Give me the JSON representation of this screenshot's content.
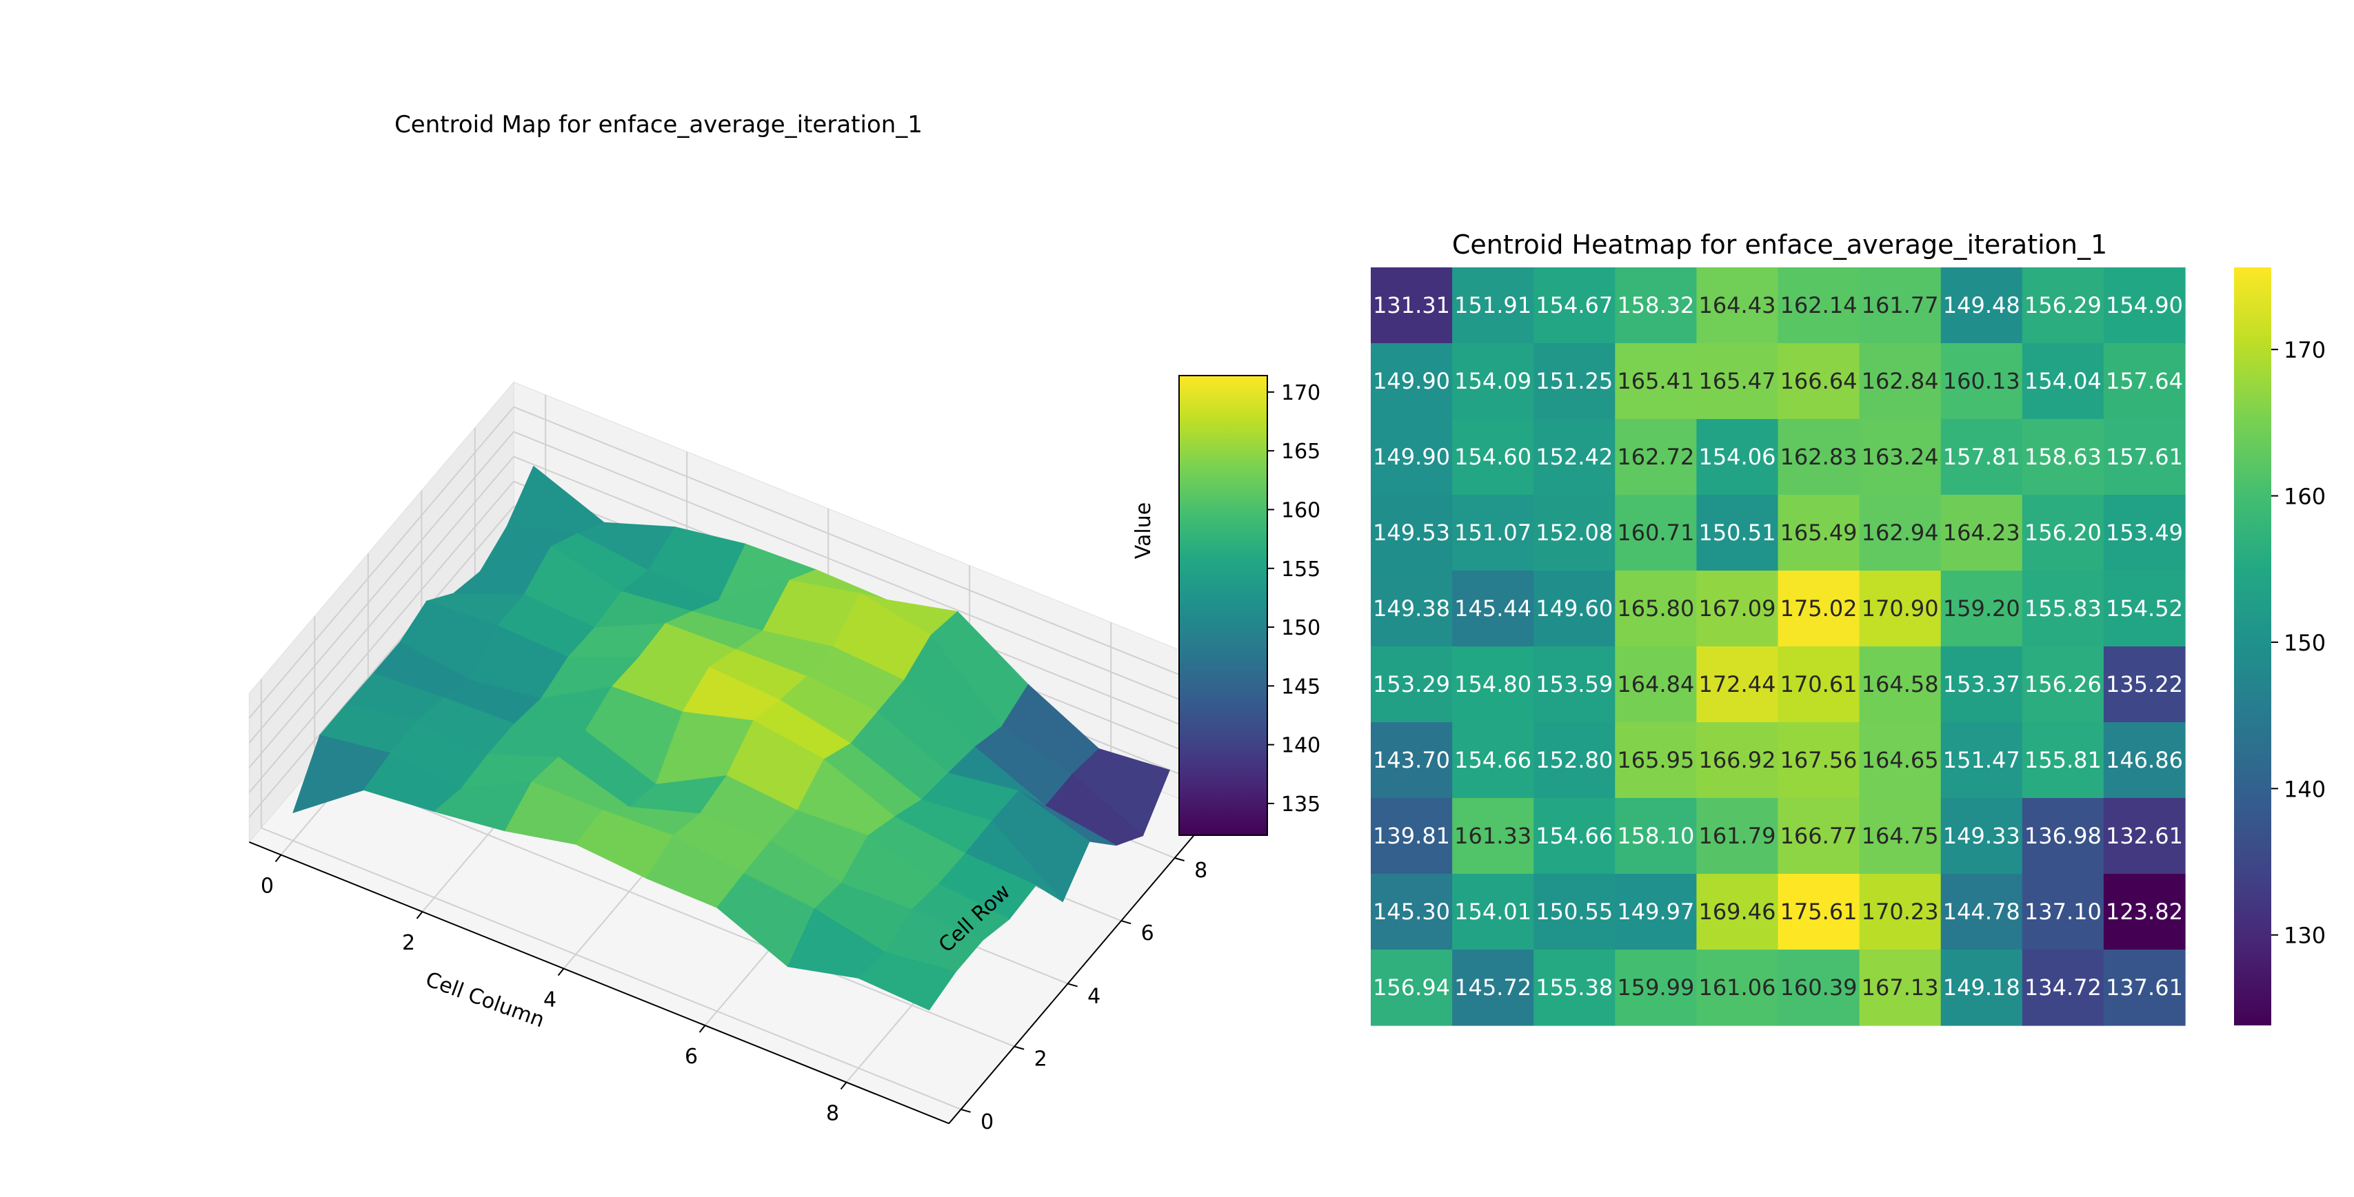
{
  "chart_data": [
    {
      "type": "surface",
      "title": "Centroid Map for enface_average_iteration_1",
      "xlabel": "Cell Column",
      "ylabel": "Cell Row",
      "zlabel": "Value",
      "x_ticks": [
        "0",
        "2",
        "4",
        "6",
        "8"
      ],
      "y_ticks": [
        "0",
        "2",
        "4",
        "6",
        "8"
      ],
      "z_ticks": [
        "130",
        "140",
        "150",
        "160",
        "170"
      ],
      "zlim": [
        123.82,
        175.61
      ],
      "colormap": "viridis",
      "colorbar": {
        "label": "Value",
        "ticks": [
          "135",
          "140",
          "145",
          "150",
          "155",
          "160",
          "165",
          "170"
        ],
        "range": [
          132.3,
          171.4
        ]
      },
      "grid": true,
      "source": "heatmap_values"
    },
    {
      "type": "heatmap",
      "title": "Centroid Heatmap for enface_average_iteration_1",
      "colormap": "viridis",
      "value_range": [
        123.82,
        175.61
      ],
      "colorbar": {
        "ticks": [
          "130",
          "140",
          "150",
          "160",
          "170"
        ]
      },
      "values": [
        [
          131.31,
          151.91,
          154.67,
          158.32,
          164.43,
          162.14,
          161.77,
          149.48,
          156.29,
          154.9
        ],
        [
          149.9,
          154.09,
          151.25,
          165.41,
          165.47,
          166.64,
          162.84,
          160.13,
          154.04,
          157.64
        ],
        [
          149.9,
          154.6,
          152.42,
          162.72,
          154.06,
          162.83,
          163.24,
          157.81,
          158.63,
          157.61
        ],
        [
          149.53,
          151.07,
          152.08,
          160.71,
          150.51,
          165.49,
          162.94,
          164.23,
          156.2,
          153.49
        ],
        [
          149.38,
          145.44,
          149.6,
          165.8,
          167.09,
          175.02,
          170.9,
          159.2,
          155.83,
          154.52
        ],
        [
          153.29,
          154.8,
          153.59,
          164.84,
          172.44,
          170.61,
          164.58,
          153.37,
          156.26,
          135.22
        ],
        [
          143.7,
          154.66,
          152.8,
          165.95,
          166.92,
          167.56,
          164.65,
          151.47,
          155.81,
          146.86
        ],
        [
          139.81,
          161.33,
          154.66,
          158.1,
          161.79,
          166.77,
          164.75,
          149.33,
          136.98,
          132.61
        ],
        [
          145.3,
          154.01,
          150.55,
          149.97,
          169.46,
          175.61,
          170.23,
          144.78,
          137.1,
          123.82
        ],
        [
          156.94,
          145.72,
          155.38,
          159.99,
          161.06,
          160.39,
          167.13,
          149.18,
          134.72,
          137.61
        ]
      ]
    }
  ]
}
